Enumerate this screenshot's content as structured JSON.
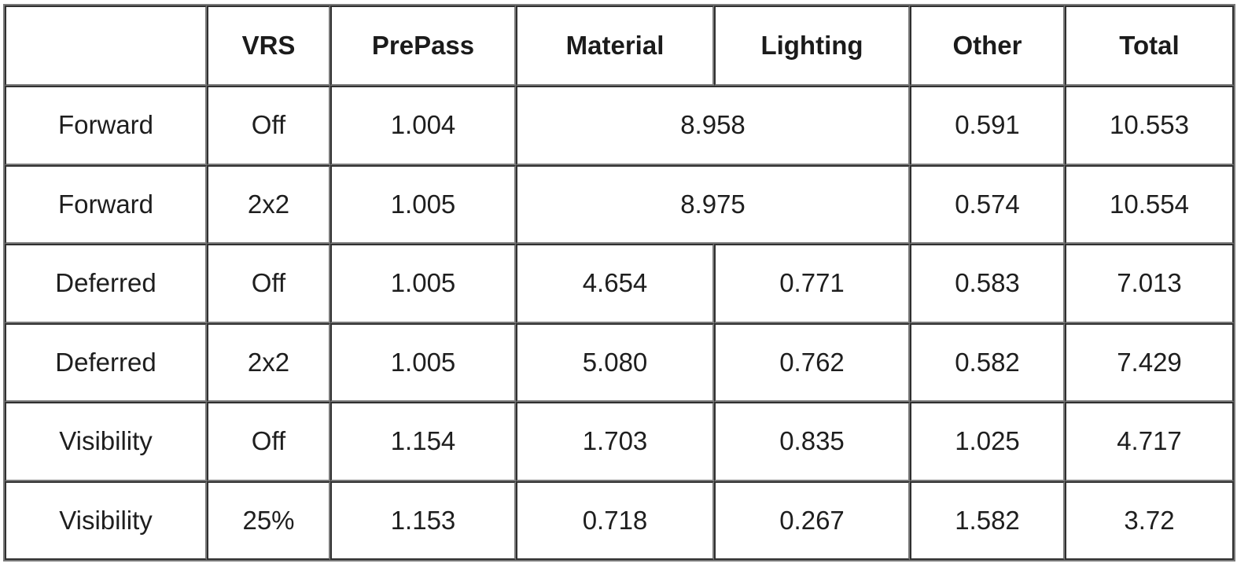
{
  "colors": {
    "border_dark": "#303030",
    "border_light": "#7a7a7a",
    "text": "#1e1e1e",
    "background": "#ffffff"
  },
  "chart_data": {
    "type": "table",
    "title": "",
    "header": [
      "",
      "VRS",
      "PrePass",
      "Material",
      "Lighting",
      "Other",
      "Total"
    ],
    "rows": [
      {
        "mode": "Forward",
        "vrs": "Off",
        "prepass": "1.004",
        "material_lighting": "8.958",
        "other": "0.591",
        "total": "10.553"
      },
      {
        "mode": "Forward",
        "vrs": "2x2",
        "prepass": "1.005",
        "material_lighting": "8.975",
        "other": "0.574",
        "total": "10.554"
      },
      {
        "mode": "Deferred",
        "vrs": "Off",
        "prepass": "1.005",
        "material": "4.654",
        "lighting": "0.771",
        "other": "0.583",
        "total": "7.013"
      },
      {
        "mode": "Deferred",
        "vrs": "2x2",
        "prepass": "1.005",
        "material": "5.080",
        "lighting": "0.762",
        "other": "0.582",
        "total": "7.429"
      },
      {
        "mode": "Visibility",
        "vrs": "Off",
        "prepass": "1.154",
        "material": "1.703",
        "lighting": "0.835",
        "other": "1.025",
        "total": "4.717"
      },
      {
        "mode": "Visibility",
        "vrs": "25%",
        "prepass": "1.153",
        "material": "0.718",
        "lighting": "0.267",
        "other": "1.582",
        "total": "3.72"
      }
    ],
    "layout": {
      "merged_material_lighting_row_indices": [
        0,
        1
      ],
      "grid": "all-borders",
      "row_count": 7,
      "column_count": 7
    }
  }
}
